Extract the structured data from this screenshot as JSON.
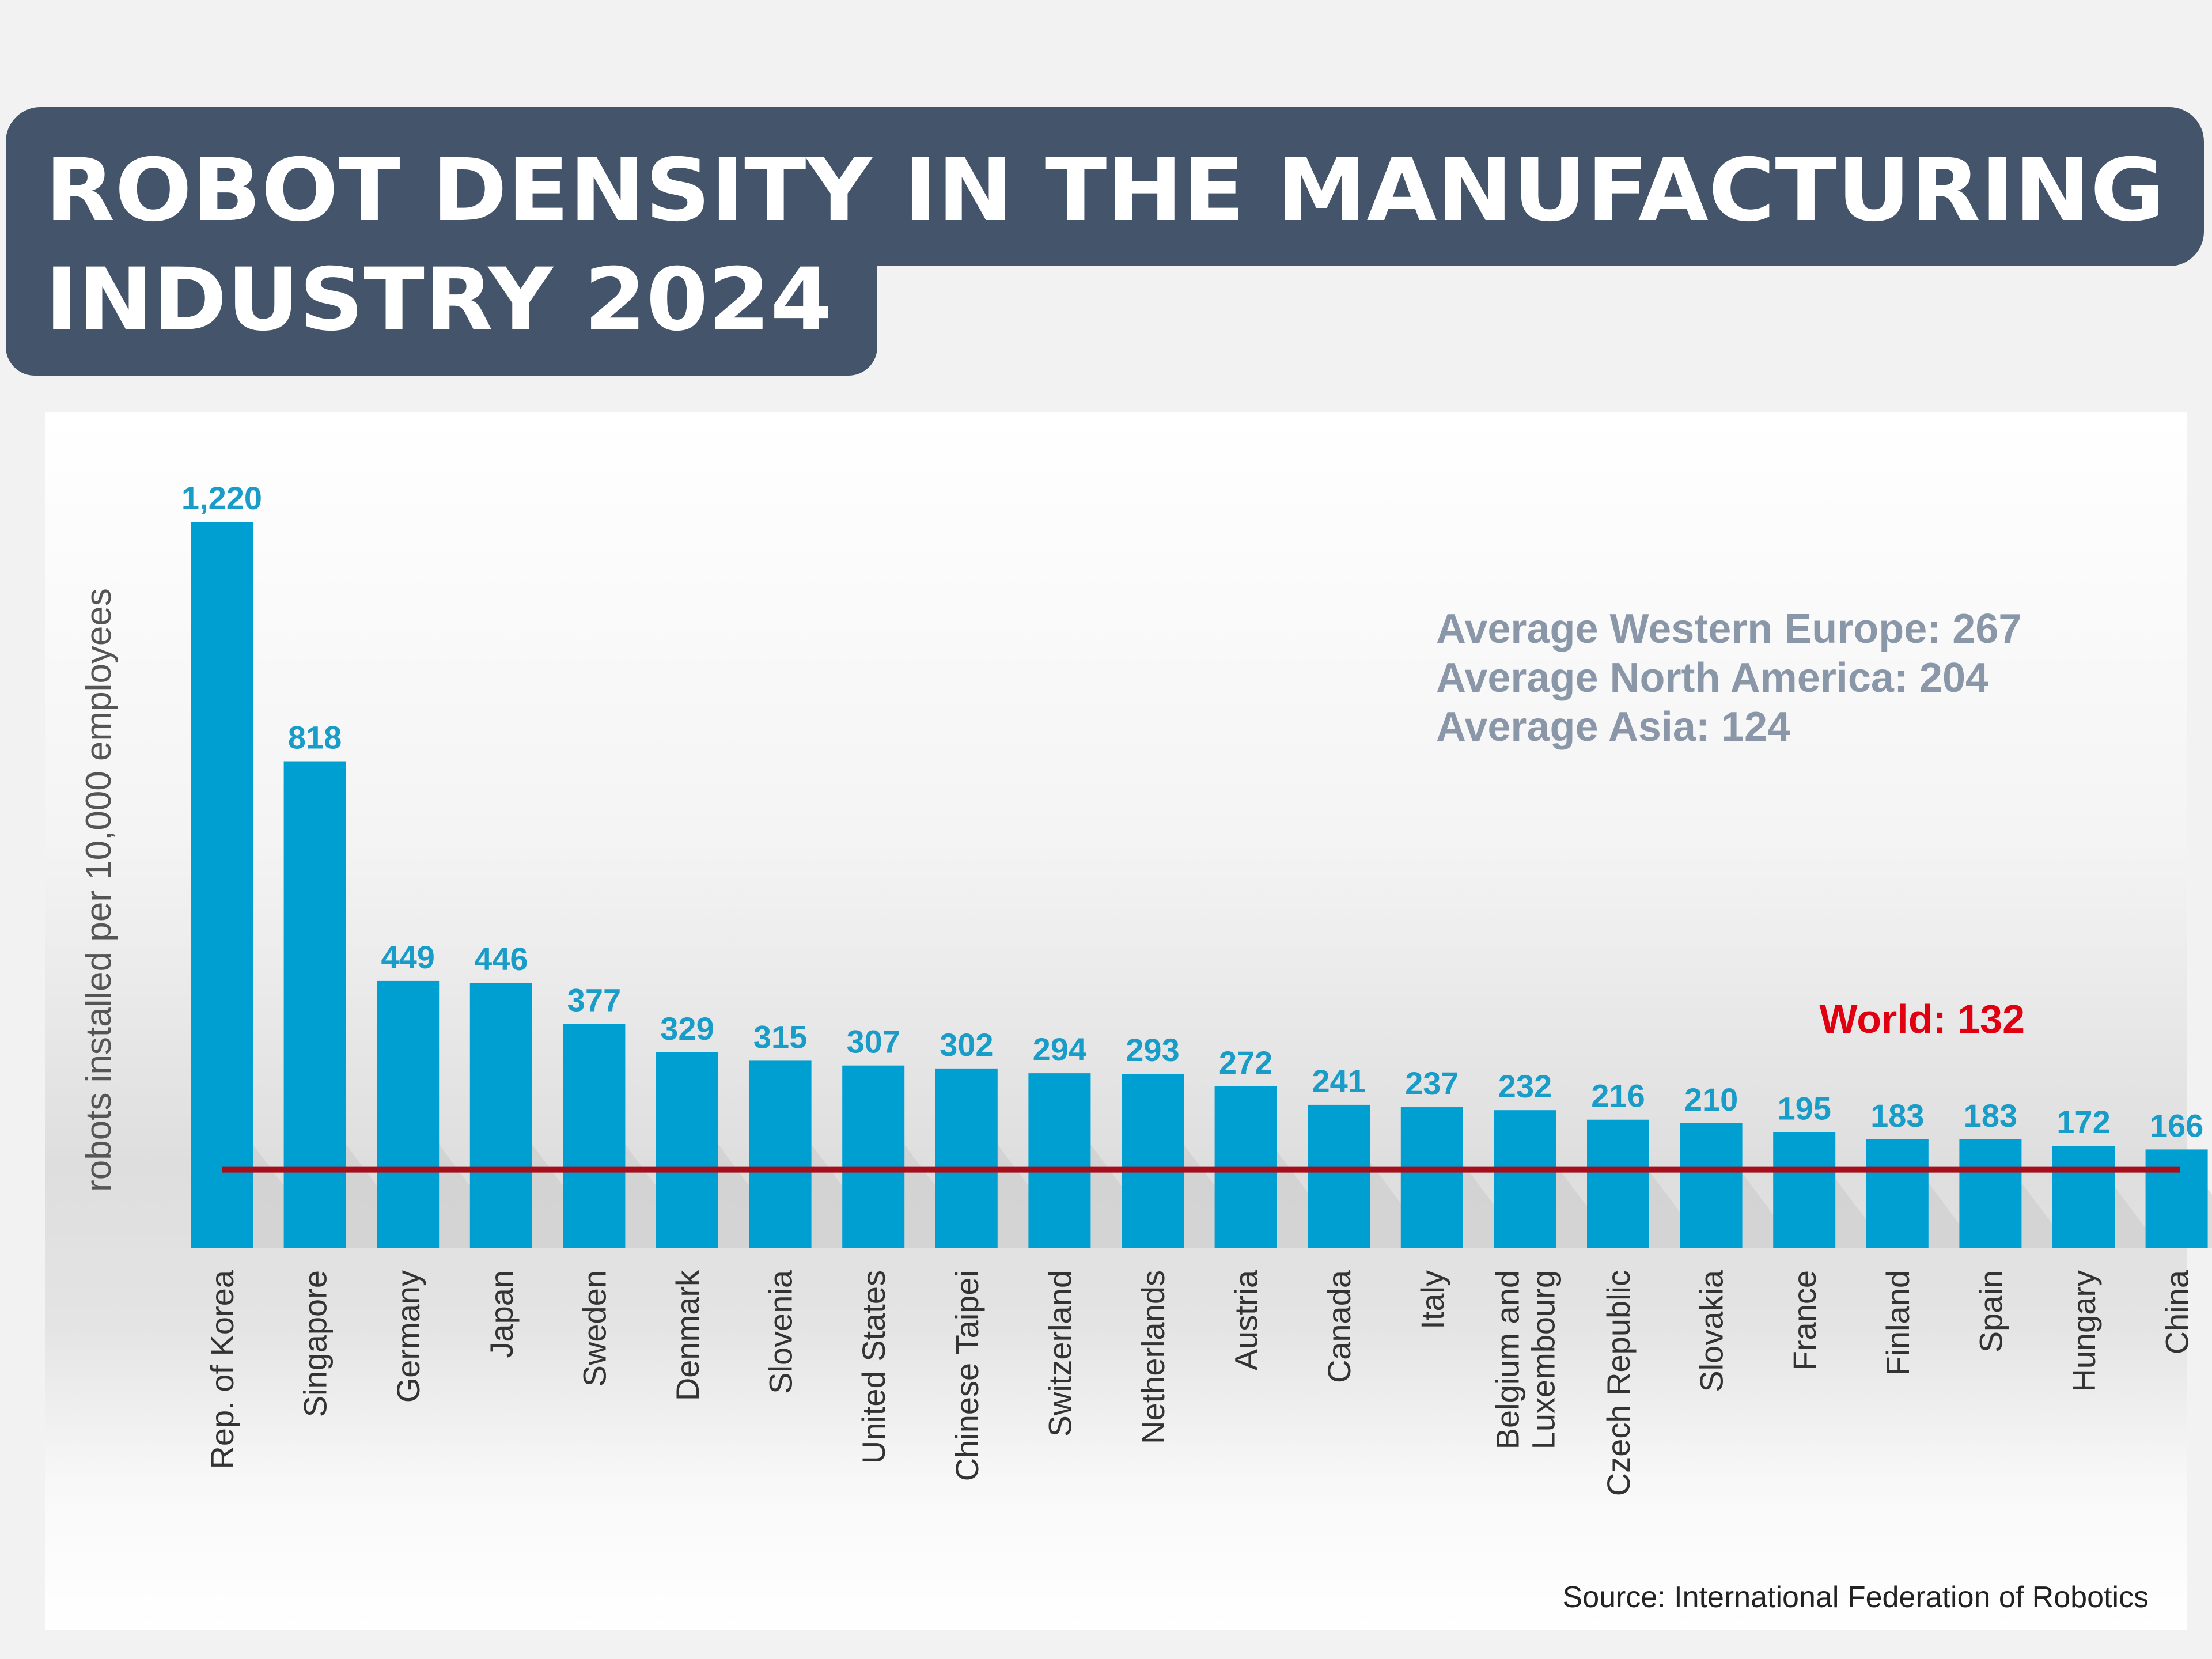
{
  "title": {
    "line1": "ROBOT DENSITY IN THE MANUFACTURING",
    "line2": "INDUSTRY 2024"
  },
  "colors": {
    "banner": "#44546a",
    "bar": "#009fd1",
    "value_label": "#1a9cc8",
    "world_line": "#a50f1c",
    "world_label": "#e00010",
    "averages_text": "#8a97a8"
  },
  "chart_data": {
    "type": "bar",
    "title": "ROBOT DENSITY IN THE MANUFACTURING INDUSTRY 2024",
    "ylabel": "robots installed per 10,000 employees",
    "xlabel": "",
    "categories": [
      "Rep. of Korea",
      "Singapore",
      "Germany",
      "Japan",
      "Sweden",
      "Denmark",
      "Slovenia",
      "United States",
      "Chinese Taipei",
      "Switzerland",
      "Netherlands",
      "Austria",
      "Canada",
      "Italy",
      "Belgium and Luxembourg",
      "Czech Republic",
      "Slovakia",
      "France",
      "Finland",
      "Spain",
      "Hungary",
      "China"
    ],
    "category_lines": [
      [
        "Rep. of Korea"
      ],
      [
        "Singapore"
      ],
      [
        "Germany"
      ],
      [
        "Japan"
      ],
      [
        "Sweden"
      ],
      [
        "Denmark"
      ],
      [
        "Slovenia"
      ],
      [
        "United States"
      ],
      [
        "Chinese Taipei"
      ],
      [
        "Switzerland"
      ],
      [
        "Netherlands"
      ],
      [
        "Austria"
      ],
      [
        "Canada"
      ],
      [
        "Italy"
      ],
      [
        "Belgium and",
        "Luxembourg"
      ],
      [
        "Czech Republic"
      ],
      [
        "Slovakia"
      ],
      [
        "France"
      ],
      [
        "Finland"
      ],
      [
        "Spain"
      ],
      [
        "Hungary"
      ],
      [
        "China"
      ]
    ],
    "values": [
      1220,
      818,
      449,
      446,
      377,
      329,
      315,
      307,
      302,
      294,
      293,
      272,
      241,
      237,
      232,
      216,
      210,
      195,
      183,
      183,
      172,
      166
    ],
    "value_labels": [
      "1,220",
      "818",
      "449",
      "446",
      "377",
      "329",
      "315",
      "307",
      "302",
      "294",
      "293",
      "272",
      "241",
      "237",
      "232",
      "216",
      "210",
      "195",
      "183",
      "183",
      "172",
      "166"
    ],
    "ylim": [
      0,
      1220
    ],
    "grid": false,
    "reference_line": {
      "label": "World: 132",
      "value": 132
    },
    "annotations": [
      "Average Western Europe: 267",
      "Average North America: 204",
      "Average Asia: 124"
    ],
    "source": "Source: International Federation of Robotics"
  }
}
